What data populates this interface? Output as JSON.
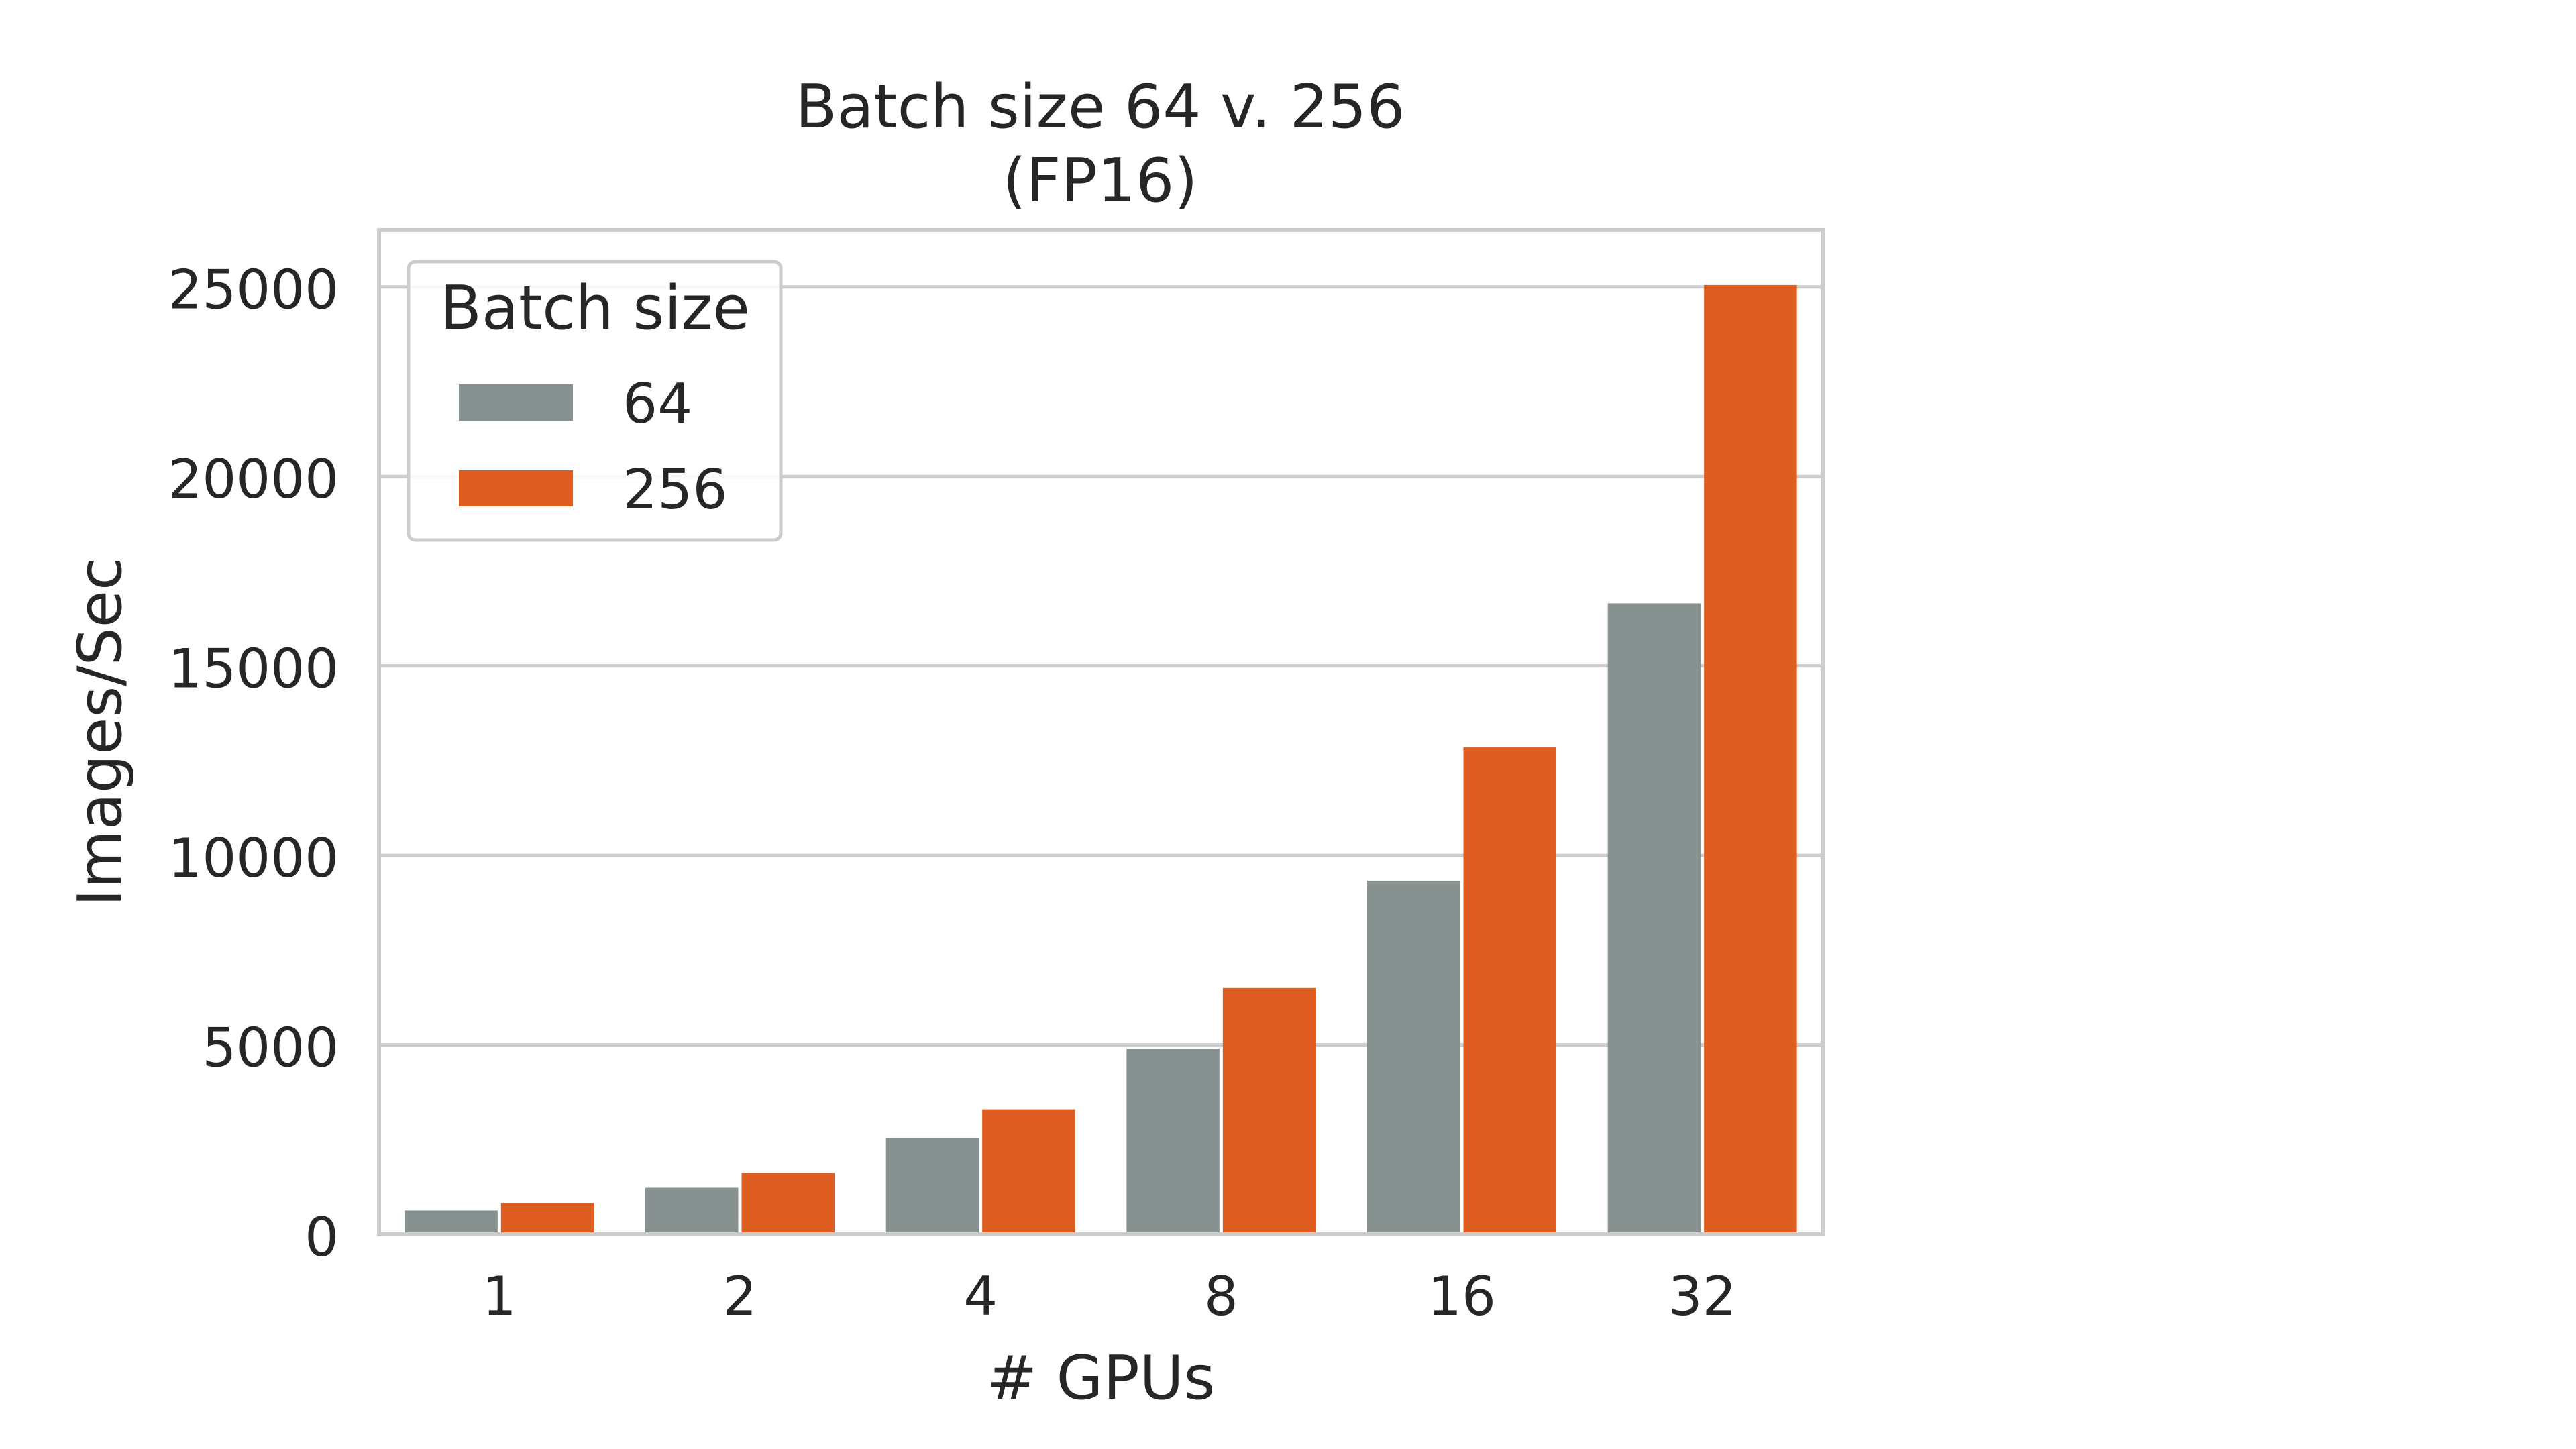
{
  "chart_data": {
    "type": "bar",
    "title": "Batch size 64 v. 256",
    "subtitle": "(FP16)",
    "xlabel": "# GPUs",
    "ylabel": "Images/Sec",
    "categories": [
      "1",
      "2",
      "4",
      "8",
      "16",
      "32"
    ],
    "series": [
      {
        "name": "64",
        "color": "#879190",
        "values": [
          630,
          1230,
          2550,
          4900,
          9330,
          16650
        ]
      },
      {
        "name": "256",
        "color": "#de5d20",
        "values": [
          820,
          1620,
          3300,
          6500,
          12850,
          25050
        ]
      }
    ],
    "ylim": [
      0,
      26500
    ],
    "yticks": [
      0,
      5000,
      10000,
      15000,
      20000,
      25000
    ],
    "ytick_labels": [
      "0",
      "5000",
      "10000",
      "15000",
      "20000",
      "25000"
    ],
    "grid": true,
    "legend": {
      "title": "Batch size",
      "placement": "top-left"
    }
  }
}
